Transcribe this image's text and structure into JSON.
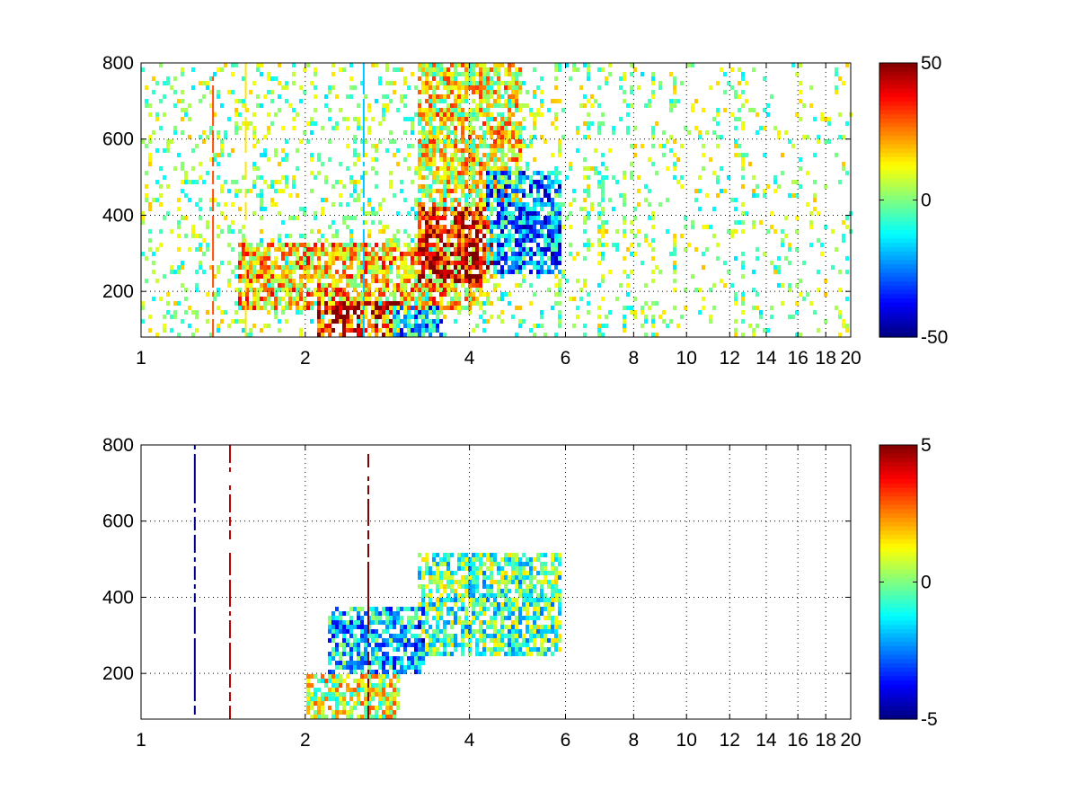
{
  "figure": {
    "background": "#ffffff",
    "colormap": "jet"
  },
  "chart_data": [
    {
      "type": "heatmap",
      "title": "",
      "xlabel": "",
      "ylabel": "",
      "x_scale": "log",
      "xlim": [
        1,
        20
      ],
      "ylim": [
        80,
        800
      ],
      "x_ticks": [
        1,
        2,
        4,
        6,
        8,
        10,
        12,
        14,
        16,
        18,
        20
      ],
      "x_tick_labels": [
        "1",
        "2",
        "4",
        "6",
        "8",
        "10",
        "12",
        "14",
        "16",
        "18",
        "20"
      ],
      "y_ticks": [
        200,
        400,
        600,
        800
      ],
      "y_tick_labels": [
        "200",
        "400",
        "600",
        "800"
      ],
      "grid": true,
      "colorbar": {
        "min": -50,
        "max": 50,
        "ticks": [
          50,
          0,
          -50
        ],
        "tick_labels": [
          "50",
          "0",
          "-50"
        ]
      },
      "features": [
        {
          "kind": "blob",
          "x": [
            1.5,
            4.2
          ],
          "y": [
            150,
            330
          ],
          "value": 18
        },
        {
          "kind": "blob",
          "x": [
            3.2,
            4.4
          ],
          "y": [
            220,
            420
          ],
          "value": 38
        },
        {
          "kind": "blob",
          "x": [
            2.1,
            3.0
          ],
          "y": [
            85,
            180
          ],
          "value": 35
        },
        {
          "kind": "blob",
          "x": [
            3.2,
            5.0
          ],
          "y": [
            420,
            800
          ],
          "value": 12
        },
        {
          "kind": "blob",
          "x": [
            4.3,
            5.9
          ],
          "y": [
            250,
            520
          ],
          "value": -25
        },
        {
          "kind": "blob",
          "x": [
            2.9,
            3.6
          ],
          "y": [
            80,
            160
          ],
          "value": -20
        },
        {
          "kind": "stripe",
          "x": 1.35,
          "value": 30
        },
        {
          "kind": "stripe",
          "x": 1.55,
          "value": 15
        },
        {
          "kind": "stripe",
          "x": 2.55,
          "value": -18
        }
      ]
    },
    {
      "type": "heatmap",
      "title": "",
      "xlabel": "",
      "ylabel": "",
      "x_scale": "log",
      "xlim": [
        1,
        20
      ],
      "ylim": [
        80,
        800
      ],
      "x_ticks": [
        1,
        2,
        4,
        6,
        8,
        10,
        12,
        14,
        16,
        18,
        20
      ],
      "x_tick_labels": [
        "1",
        "2",
        "4",
        "6",
        "8",
        "10",
        "12",
        "14",
        "16",
        "18",
        "20"
      ],
      "y_ticks": [
        200,
        400,
        600,
        800
      ],
      "y_tick_labels": [
        "200",
        "400",
        "600",
        "800"
      ],
      "grid": true,
      "colorbar": {
        "min": -5,
        "max": 5,
        "ticks": [
          5,
          0,
          -5
        ],
        "tick_labels": [
          "5",
          "0",
          "-5"
        ]
      },
      "features": [
        {
          "kind": "blob",
          "x": [
            3.2,
            5.9
          ],
          "y": [
            240,
            520
          ],
          "value": -0.5
        },
        {
          "kind": "blob",
          "x": [
            2.2,
            3.3
          ],
          "y": [
            200,
            380
          ],
          "value": -1.8
        },
        {
          "kind": "blob",
          "x": [
            2.0,
            3.0
          ],
          "y": [
            80,
            200
          ],
          "value": 0.8
        },
        {
          "kind": "stripe",
          "x": 1.25,
          "value": -5
        },
        {
          "kind": "stripe",
          "x": 1.45,
          "value": 4.5
        },
        {
          "kind": "stripe",
          "x": 2.6,
          "value": 5
        }
      ]
    }
  ]
}
